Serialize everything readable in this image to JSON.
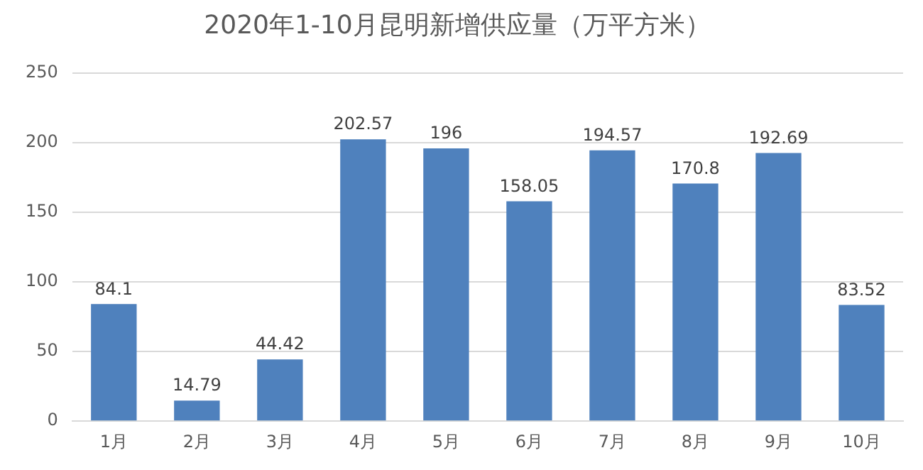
{
  "chart_data": {
    "type": "bar",
    "title": "2020年1-10月昆明新增供应量（万平方米）",
    "categories": [
      "1月",
      "2月",
      "3月",
      "4月",
      "5月",
      "6月",
      "7月",
      "8月",
      "9月",
      "10月"
    ],
    "values": [
      84.1,
      14.79,
      44.42,
      202.57,
      196,
      158.05,
      194.57,
      170.8,
      192.69,
      83.52
    ],
    "color": "#4f81bd",
    "ylim": [
      0,
      250
    ],
    "yticks": [
      0,
      50,
      100,
      150,
      200,
      250
    ],
    "grid": "y",
    "data_labels": true,
    "legend": false
  }
}
